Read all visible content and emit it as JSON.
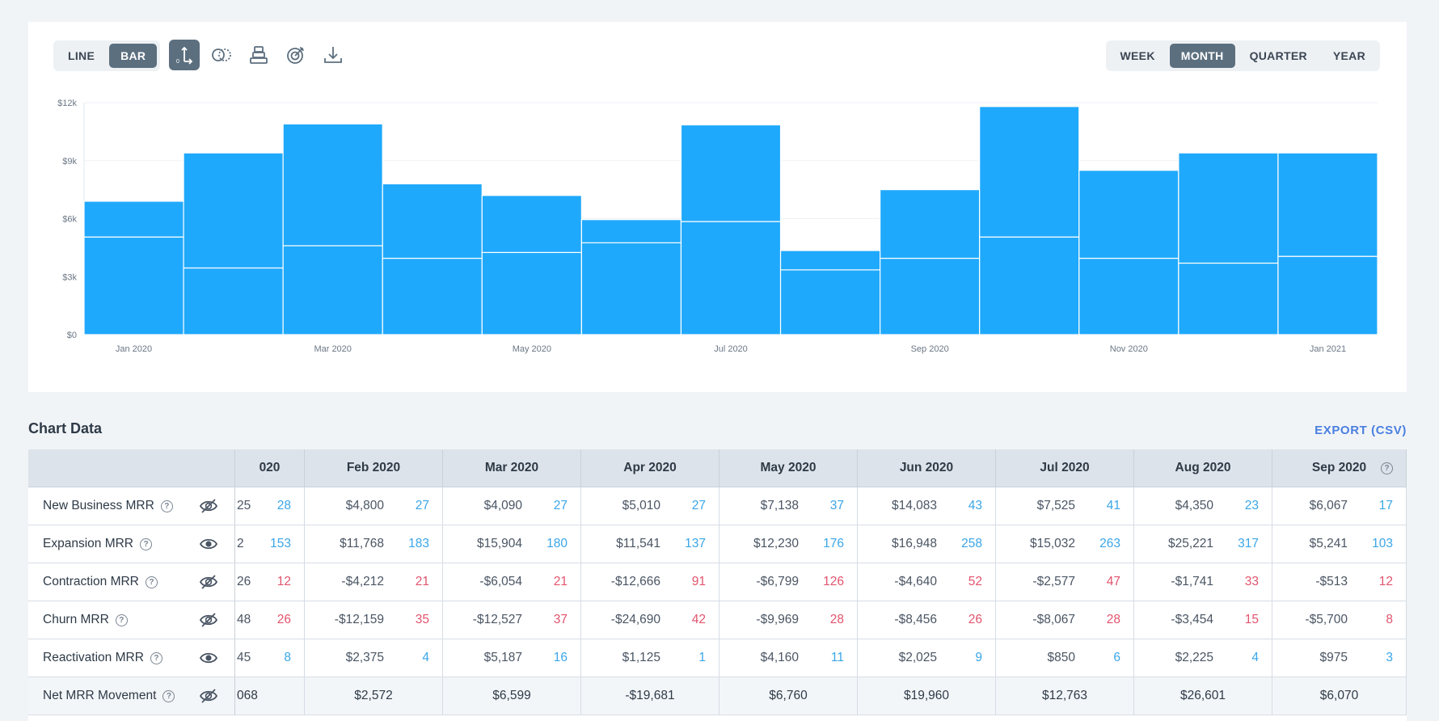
{
  "chart_toggle": {
    "line": "LINE",
    "bar": "BAR",
    "active": "bar"
  },
  "period_toggle": {
    "week": "WEEK",
    "month": "MONTH",
    "quarter": "QUARTER",
    "year": "YEAR",
    "active": "month"
  },
  "tool_icons": [
    "zero-axis-icon",
    "compare-icon",
    "stack-icon",
    "target-icon",
    "download-icon"
  ],
  "colors": {
    "bar": "#1fa9fc",
    "accent": "#5c6f7f",
    "positive": "#3aa6e8",
    "negative": "#e2546d"
  },
  "chart_data": {
    "type": "bar",
    "stacked": true,
    "categories": [
      "Jan 2020",
      "Feb 2020",
      "Mar 2020",
      "Apr 2020",
      "May 2020",
      "Jun 2020",
      "Jul 2020",
      "Aug 2020",
      "Sep 2020",
      "Oct 2020",
      "Nov 2020",
      "Dec 2020",
      "Jan 2021"
    ],
    "x_tick_labels": [
      "Jan 2020",
      "Mar 2020",
      "May 2020",
      "Jul 2020",
      "Sep 2020",
      "Nov 2020",
      "Jan 2021"
    ],
    "series": [
      {
        "values": [
          5050,
          3450,
          4600,
          3950,
          4250,
          4750,
          5850,
          3350,
          3950,
          5050,
          3950,
          3700,
          4050
        ]
      },
      {
        "values": [
          1850,
          5950,
          6300,
          3850,
          2950,
          1200,
          5000,
          1000,
          3550,
          6750,
          4550,
          5700,
          5350
        ]
      }
    ],
    "y_ticks": [
      "$0",
      "$3k",
      "$6k",
      "$9k",
      "$12k"
    ],
    "ylim": [
      0,
      12000
    ],
    "grid": true
  },
  "table": {
    "title": "Chart Data",
    "export_label": "EXPORT (CSV)",
    "help_glyph": "?",
    "columns": [
      "020",
      "Feb 2020",
      "Mar 2020",
      "Apr 2020",
      "May 2020",
      "Jun 2020",
      "Jul 2020",
      "Aug 2020",
      "Sep 2020"
    ],
    "rows": [
      {
        "label": "New Business MRR",
        "visible": false,
        "kind": "pos",
        "cells": [
          [
            "25",
            "28"
          ],
          [
            "$4,800",
            "27"
          ],
          [
            "$4,090",
            "27"
          ],
          [
            "$5,010",
            "27"
          ],
          [
            "$7,138",
            "37"
          ],
          [
            "$14,083",
            "43"
          ],
          [
            "$7,525",
            "41"
          ],
          [
            "$4,350",
            "23"
          ],
          [
            "$6,067",
            "17"
          ]
        ]
      },
      {
        "label": "Expansion MRR",
        "visible": true,
        "kind": "pos",
        "cells": [
          [
            "2",
            "153"
          ],
          [
            "$11,768",
            "183"
          ],
          [
            "$15,904",
            "180"
          ],
          [
            "$11,541",
            "137"
          ],
          [
            "$12,230",
            "176"
          ],
          [
            "$16,948",
            "258"
          ],
          [
            "$15,032",
            "263"
          ],
          [
            "$25,221",
            "317"
          ],
          [
            "$5,241",
            "103"
          ]
        ]
      },
      {
        "label": "Contraction MRR",
        "visible": false,
        "kind": "neg",
        "cells": [
          [
            "26",
            "12"
          ],
          [
            "-$4,212",
            "21"
          ],
          [
            "-$6,054",
            "21"
          ],
          [
            "-$12,666",
            "91"
          ],
          [
            "-$6,799",
            "126"
          ],
          [
            "-$4,640",
            "52"
          ],
          [
            "-$2,577",
            "47"
          ],
          [
            "-$1,741",
            "33"
          ],
          [
            "-$513",
            "12"
          ]
        ]
      },
      {
        "label": "Churn MRR",
        "visible": false,
        "kind": "neg",
        "cells": [
          [
            "48",
            "26"
          ],
          [
            "-$12,159",
            "35"
          ],
          [
            "-$12,527",
            "37"
          ],
          [
            "-$24,690",
            "42"
          ],
          [
            "-$9,969",
            "28"
          ],
          [
            "-$8,456",
            "26"
          ],
          [
            "-$8,067",
            "28"
          ],
          [
            "-$3,454",
            "15"
          ],
          [
            "-$5,700",
            "8"
          ]
        ]
      },
      {
        "label": "Reactivation MRR",
        "visible": true,
        "kind": "pos",
        "cells": [
          [
            "45",
            "8"
          ],
          [
            "$2,375",
            "4"
          ],
          [
            "$5,187",
            "16"
          ],
          [
            "$1,125",
            "1"
          ],
          [
            "$4,160",
            "11"
          ],
          [
            "$2,025",
            "9"
          ],
          [
            "$850",
            "6"
          ],
          [
            "$2,225",
            "4"
          ],
          [
            "$975",
            "3"
          ]
        ]
      },
      {
        "label": "Net MRR Movement",
        "visible": false,
        "kind": "net",
        "cells": [
          [
            "068"
          ],
          [
            "$2,572"
          ],
          [
            "$6,599"
          ],
          [
            "-$19,681"
          ],
          [
            "$6,760"
          ],
          [
            "$19,960"
          ],
          [
            "$12,763"
          ],
          [
            "$26,601"
          ],
          [
            "$6,070"
          ]
        ]
      }
    ]
  }
}
